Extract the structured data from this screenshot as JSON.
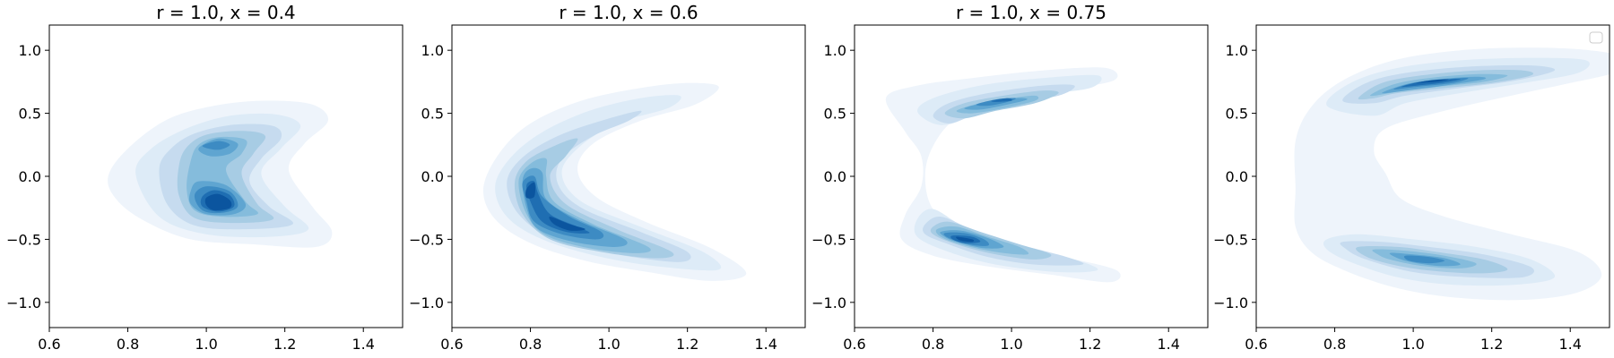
{
  "colors": {
    "levels": [
      "#eef4fb",
      "#ddebf7",
      "#c6dbef",
      "#a7cce4",
      "#85bcdc",
      "#5fa5d1",
      "#3d8bc3",
      "#1f6eb2",
      "#0b559f",
      "#08306b"
    ],
    "frame": "#000000",
    "background": "#ffffff"
  },
  "chart_data": [
    {
      "type": "contour",
      "title": "r = 1.0, x = 0.4",
      "xlim": [
        0.6,
        1.5
      ],
      "ylim": [
        -1.2,
        1.2
      ],
      "x_ticks": [
        0.6,
        0.8,
        1.0,
        1.2,
        1.4
      ],
      "y_ticks": [
        -1.0,
        -0.5,
        0.0,
        0.5,
        1.0
      ],
      "x_tick_labels": [
        "0.6",
        "0.8",
        "1.0",
        "1.2",
        "1.4"
      ],
      "y_tick_labels": [
        "−1.0",
        "−0.5",
        "0.0",
        "0.5",
        "1.0"
      ],
      "legend": false,
      "modes": [
        {
          "x": 1.03,
          "y": -0.22,
          "level": 9
        },
        {
          "x": 1.02,
          "y": 0.28,
          "level": 6
        }
      ]
    },
    {
      "type": "contour",
      "title": "r = 1.0, x = 0.6",
      "xlim": [
        0.6,
        1.5
      ],
      "ylim": [
        -1.2,
        1.2
      ],
      "x_ticks": [
        0.6,
        0.8,
        1.0,
        1.2,
        1.4
      ],
      "y_ticks": [
        -1.0,
        -0.5,
        0.0,
        0.5,
        1.0
      ],
      "x_tick_labels": [
        "0.6",
        "0.8",
        "1.0",
        "1.2",
        "1.4"
      ],
      "y_tick_labels": [
        "−1.0",
        "−0.5",
        "0.0",
        "0.5",
        "1.0"
      ],
      "legend": false,
      "modes": [
        {
          "x": 0.79,
          "y": -0.1,
          "level": 9
        },
        {
          "x": 0.92,
          "y": -0.42,
          "level": 9
        }
      ]
    },
    {
      "type": "contour",
      "title": "r = 1.0, x = 0.75",
      "xlim": [
        0.6,
        1.5
      ],
      "ylim": [
        -1.2,
        1.2
      ],
      "x_ticks": [
        0.6,
        0.8,
        1.0,
        1.2,
        1.4
      ],
      "y_ticks": [
        -1.0,
        -0.5,
        0.0,
        0.5,
        1.0
      ],
      "x_tick_labels": [
        "0.6",
        "0.8",
        "1.0",
        "1.2",
        "1.4"
      ],
      "y_tick_labels": [
        "−1.0",
        "−0.5",
        "0.0",
        "0.5",
        "1.0"
      ],
      "legend": false,
      "modes": [
        {
          "x": 0.97,
          "y": 0.62,
          "level": 8
        },
        {
          "x": 0.87,
          "y": -0.5,
          "level": 9
        }
      ]
    },
    {
      "type": "contour",
      "title": "",
      "xlim": [
        0.6,
        1.5
      ],
      "ylim": [
        -1.2,
        1.2
      ],
      "x_ticks": [
        0.6,
        0.8,
        1.0,
        1.2,
        1.4
      ],
      "y_ticks": [
        -1.0,
        -0.5,
        0.0,
        0.5,
        1.0
      ],
      "x_tick_labels": [
        "0.6",
        "0.8",
        "1.0",
        "1.2",
        "1.4"
      ],
      "y_tick_labels": [
        "−1.0",
        "−0.5",
        "0.0",
        "0.5",
        "1.0"
      ],
      "legend": true,
      "legend_position": "top-right",
      "modes": [
        {
          "x": 1.02,
          "y": 0.77,
          "level": 9
        },
        {
          "x": 1.0,
          "y": -0.67,
          "level": 7
        }
      ]
    }
  ]
}
